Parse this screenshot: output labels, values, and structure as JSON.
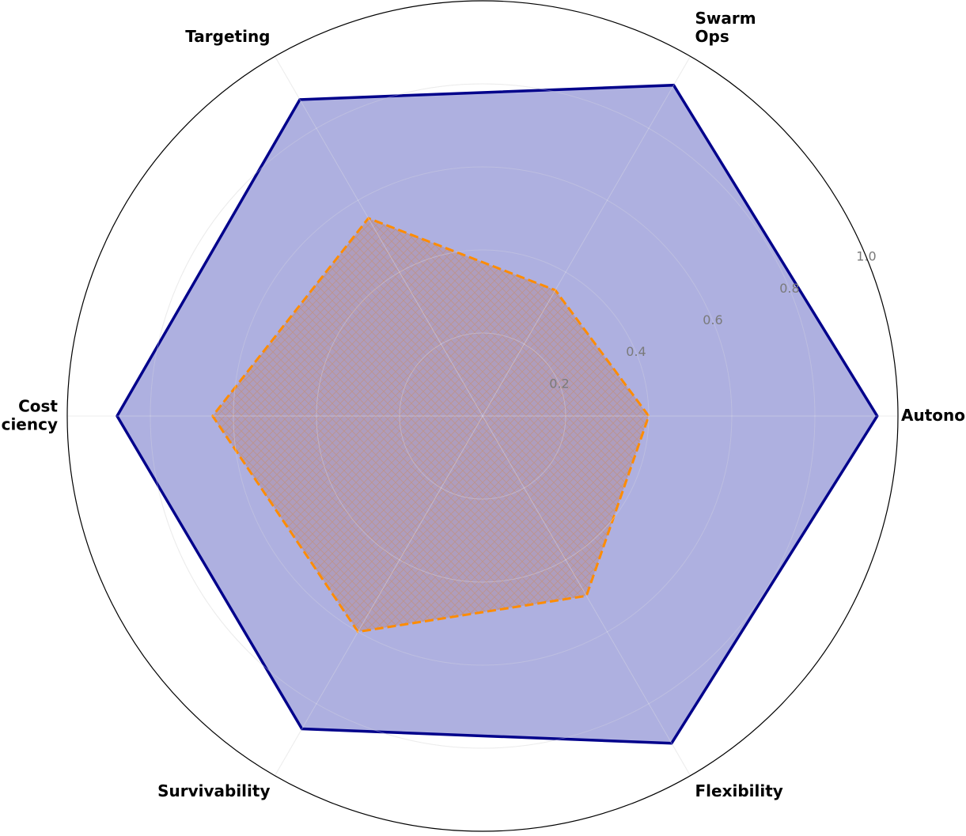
{
  "chart_data": {
    "type": "radar",
    "axes": [
      "Autonomy",
      "Swarm\nOps",
      "Targeting",
      "Cost\nEfficiency",
      "Survivability",
      "Flexibility"
    ],
    "rlim": [
      0,
      1.0
    ],
    "rticks": [
      0.2,
      0.4,
      0.6,
      0.8,
      1.0
    ],
    "rtick_labels": [
      "0.2",
      "0.4",
      "0.6",
      "0.8",
      "1.0"
    ],
    "grid": true,
    "series": [
      {
        "values": [
          0.95,
          0.92,
          0.88,
          0.88,
          0.87,
          0.91
        ],
        "line_color": "#00008b",
        "fill_color": "#6b6fc6",
        "fill_opacity": 0.55,
        "line_style": "solid"
      },
      {
        "values": [
          0.4,
          0.35,
          0.55,
          0.65,
          0.6,
          0.5
        ],
        "line_color": "#ff8c00",
        "fill_color": "#b07a7a",
        "fill_opacity": 0.35,
        "line_style": "dashed",
        "hatch": "cross"
      }
    ]
  }
}
